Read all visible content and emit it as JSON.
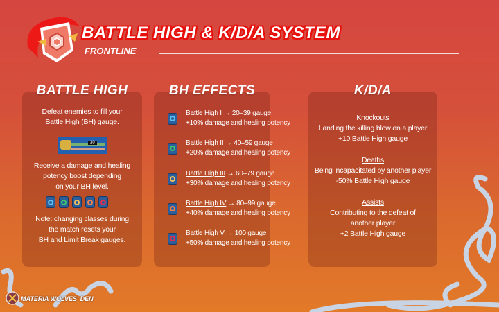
{
  "header": {
    "title": "BATTLE HIGH & K/D/A SYSTEM",
    "subtitle": "FRONTLINE"
  },
  "colors": {
    "bg_top": "#d64640",
    "bg_bottom": "#e27a28",
    "title_stroke": "#e8100c"
  },
  "battle_high": {
    "title": "BATTLE HIGH",
    "intro": [
      "Defeat enemies to fill your",
      "Battle High (BH) gauge."
    ],
    "gauge_value": "30",
    "boost": [
      "Receive a damage and healing",
      "potency boost depending",
      "on your BH level."
    ],
    "note": [
      "Note: changing classes during",
      "the match resets your",
      "BH and Limit Break gauges."
    ]
  },
  "bh_effects": {
    "title": "BH EFFECTS",
    "levels": [
      {
        "name": "Battle High I",
        "range": " → 20–39 gauge",
        "effect": "+10% damage and healing potency",
        "color": "#5cc0f0",
        "icon": "bh1-badge-icon"
      },
      {
        "name": "Battle High II",
        "range": " → 40–59 gauge",
        "effect": "+20% damage and healing potency",
        "color": "#3ec46a",
        "icon": "bh2-badge-icon"
      },
      {
        "name": "Battle High III",
        "range": " → 60–79 gauge",
        "effect": "+30% damage and healing potency",
        "color": "#f0c060",
        "icon": "bh3-badge-icon"
      },
      {
        "name": "Battle High IV",
        "range": " → 80–99 gauge",
        "effect": "+40% damage and healing potency",
        "color": "#f08050",
        "icon": "bh4-badge-icon"
      },
      {
        "name": "Battle High V",
        "range": " → 100 gauge",
        "effect": "+50% damage and healing potency",
        "color": "#e03050",
        "icon": "bh5-badge-icon"
      }
    ]
  },
  "kda": {
    "title": "K/D/A",
    "knockouts": {
      "label": "Knockouts",
      "lines": [
        "Landing the killing blow on a player",
        "+10 Battle High gauge"
      ]
    },
    "deaths": {
      "label": "Deaths",
      "lines": [
        "Being incapacitated by another player",
        "-50% Battle High gauge"
      ]
    },
    "assists": {
      "label": "Assists",
      "lines": [
        "Contributing to the defeat of",
        "another player",
        "+2 Battle High gauge"
      ]
    }
  },
  "footer": {
    "brand": "MATERIA WOLVES' DEN"
  }
}
